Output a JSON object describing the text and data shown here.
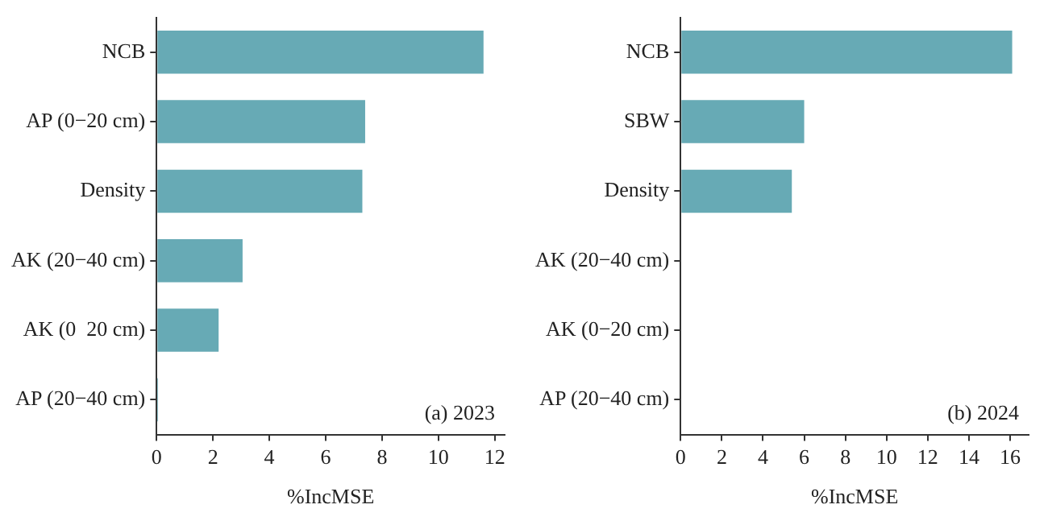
{
  "chart_data": [
    {
      "type": "bar",
      "orientation": "horizontal",
      "categories": [
        "NCB",
        "AP (0−20 cm)",
        "Density",
        "AK (20−40 cm)",
        "AK (0  20 cm)",
        "AP (20−40 cm)"
      ],
      "values": [
        11.6,
        7.4,
        7.3,
        3.05,
        2.2,
        0.05
      ],
      "color": "#67aab5",
      "xlim": [
        0,
        12.35
      ],
      "xticks": [
        0,
        2,
        4,
        6,
        8,
        10,
        12
      ],
      "xlabel": "%IncMSE",
      "annotations": [
        "(a) 2023"
      ],
      "grid": false,
      "legend": false
    },
    {
      "type": "bar",
      "orientation": "horizontal",
      "categories": [
        "NCB",
        "SBW",
        "Density",
        "AK (20−40 cm)",
        "AK (0−20 cm)",
        "AP (20−40 cm)"
      ],
      "values": [
        16.1,
        6.0,
        5.4,
        0,
        0,
        0
      ],
      "color": "#67aab5",
      "xlim": [
        0,
        16.9
      ],
      "xticks": [
        0,
        2,
        4,
        6,
        8,
        10,
        12,
        14,
        16
      ],
      "xlabel": "%IncMSE",
      "annotations": [
        "(b) 2024"
      ],
      "grid": false,
      "legend": false
    }
  ]
}
